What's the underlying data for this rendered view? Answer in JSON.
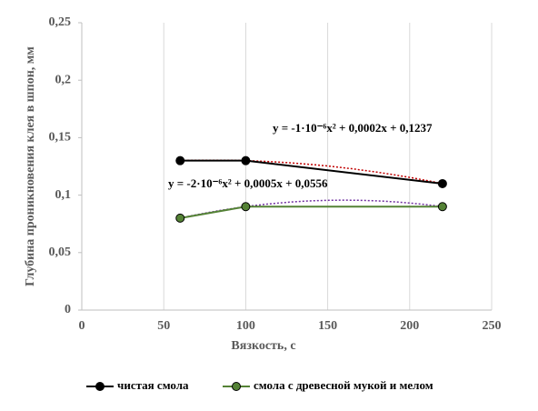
{
  "chart_data": {
    "type": "line",
    "x_label": "Вязкость, с",
    "y_label": "Глубина проникновения клея в шпон,  мм",
    "x": [
      60,
      100,
      220
    ],
    "series": [
      {
        "name": "чистая смола",
        "color": "#000000",
        "values": [
          0.13,
          0.13,
          0.11
        ],
        "trendline": {
          "equation": "y = -1·10⁻⁶x² + 0,0002x + 0,1237",
          "color": "#c00000"
        }
      },
      {
        "name": "смола с древесной мукой и мелом",
        "color": "#548235",
        "values": [
          0.08,
          0.09,
          0.09
        ],
        "trendline": {
          "equation": "y = -2·10⁻⁶x² + 0,0005x + 0,0556",
          "color": "#7030a0"
        }
      }
    ],
    "xlim": [
      0,
      250
    ],
    "xticks": [
      0,
      50,
      100,
      150,
      200,
      250
    ],
    "ylim": [
      0,
      0.25
    ],
    "yticks": [
      {
        "value": 0,
        "label": "0"
      },
      {
        "value": 0.05,
        "label": "0,05"
      },
      {
        "value": 0.1,
        "label": "0,1"
      },
      {
        "value": 0.15,
        "label": "0,15"
      },
      {
        "value": 0.2,
        "label": "0,2"
      },
      {
        "value": 0.25,
        "label": "0,25"
      }
    ],
    "grid": "x",
    "legend": "bottom"
  }
}
